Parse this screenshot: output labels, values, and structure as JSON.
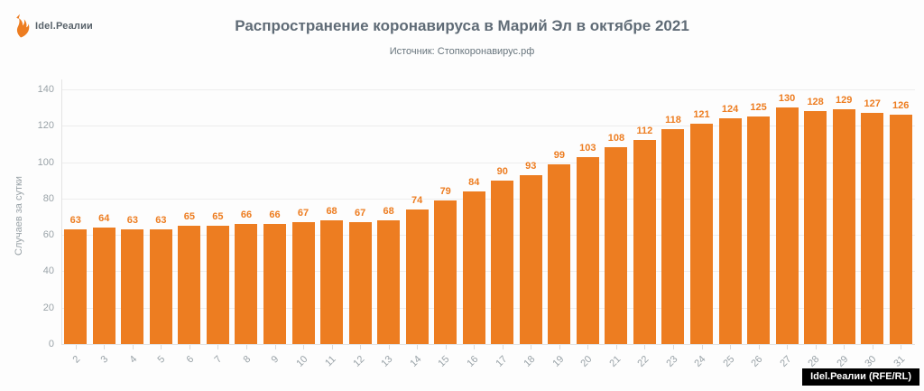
{
  "logo": {
    "text": "Idel.Реалии"
  },
  "watermark": {
    "text": "Idel.Реалии (RFE/RL)"
  },
  "chart_data": {
    "type": "bar",
    "title": "Распространение коронавируса в Марий Эл в октябре 2021",
    "subtitle": "Источник: Стопкоронавирус.рф",
    "xlabel": "",
    "ylabel": "Случаев за сутки",
    "categories": [
      "2",
      "3",
      "4",
      "5",
      "6",
      "7",
      "8",
      "9",
      "10",
      "11",
      "12",
      "13",
      "14",
      "15",
      "16",
      "17",
      "18",
      "19",
      "20",
      "21",
      "22",
      "23",
      "24",
      "25",
      "26",
      "27",
      "28",
      "29",
      "30",
      "31"
    ],
    "values": [
      63,
      64,
      63,
      63,
      65,
      65,
      66,
      66,
      67,
      68,
      67,
      68,
      74,
      79,
      84,
      90,
      93,
      99,
      103,
      108,
      112,
      118,
      121,
      124,
      125,
      130,
      128,
      129,
      127,
      126
    ],
    "ylim": [
      0,
      140
    ],
    "yticks": [
      0,
      20,
      40,
      60,
      80,
      100,
      120,
      140
    ],
    "grid": true,
    "legend": false,
    "value_labels": true,
    "colors": {
      "bar": "#ED7D21",
      "value_label": "#ED7D21",
      "title": "#5F6B76",
      "subtitle": "#68757D",
      "axis_text": "#9AA3A8",
      "gridline": "#EDEDED",
      "axis_line": "#E3E3E3",
      "tick": "#D9D9D9",
      "logo_text": "#58626A",
      "watermark_bg": "#000000",
      "watermark_text": "#FFFFFF"
    }
  }
}
